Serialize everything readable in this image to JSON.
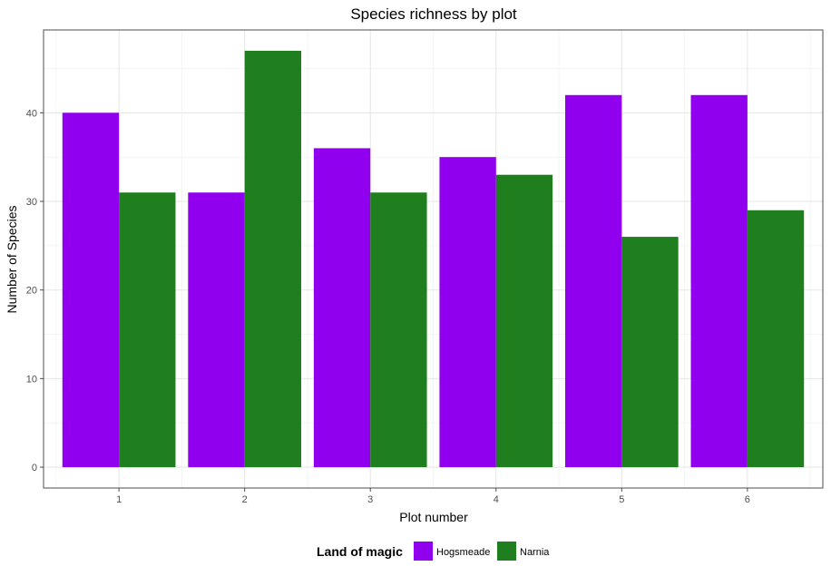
{
  "chart_data": {
    "type": "bar",
    "title": "Species richness by plot",
    "xlabel": "Plot number",
    "ylabel": "Number of Species",
    "categories": [
      "1",
      "2",
      "3",
      "4",
      "5",
      "6"
    ],
    "series": [
      {
        "name": "Hogsmeade",
        "color": "#9000ee",
        "values": [
          40,
          31,
          36,
          35,
          42,
          42
        ]
      },
      {
        "name": "Narnia",
        "color": "#1f7f1f",
        "values": [
          31,
          47,
          31,
          33,
          26,
          29
        ]
      }
    ],
    "ylim": [
      -2.35,
      49.35
    ],
    "yticks": [
      0,
      10,
      20,
      30,
      40
    ],
    "grid": true,
    "legend": {
      "title": "Land of magic",
      "position": "bottom"
    }
  }
}
